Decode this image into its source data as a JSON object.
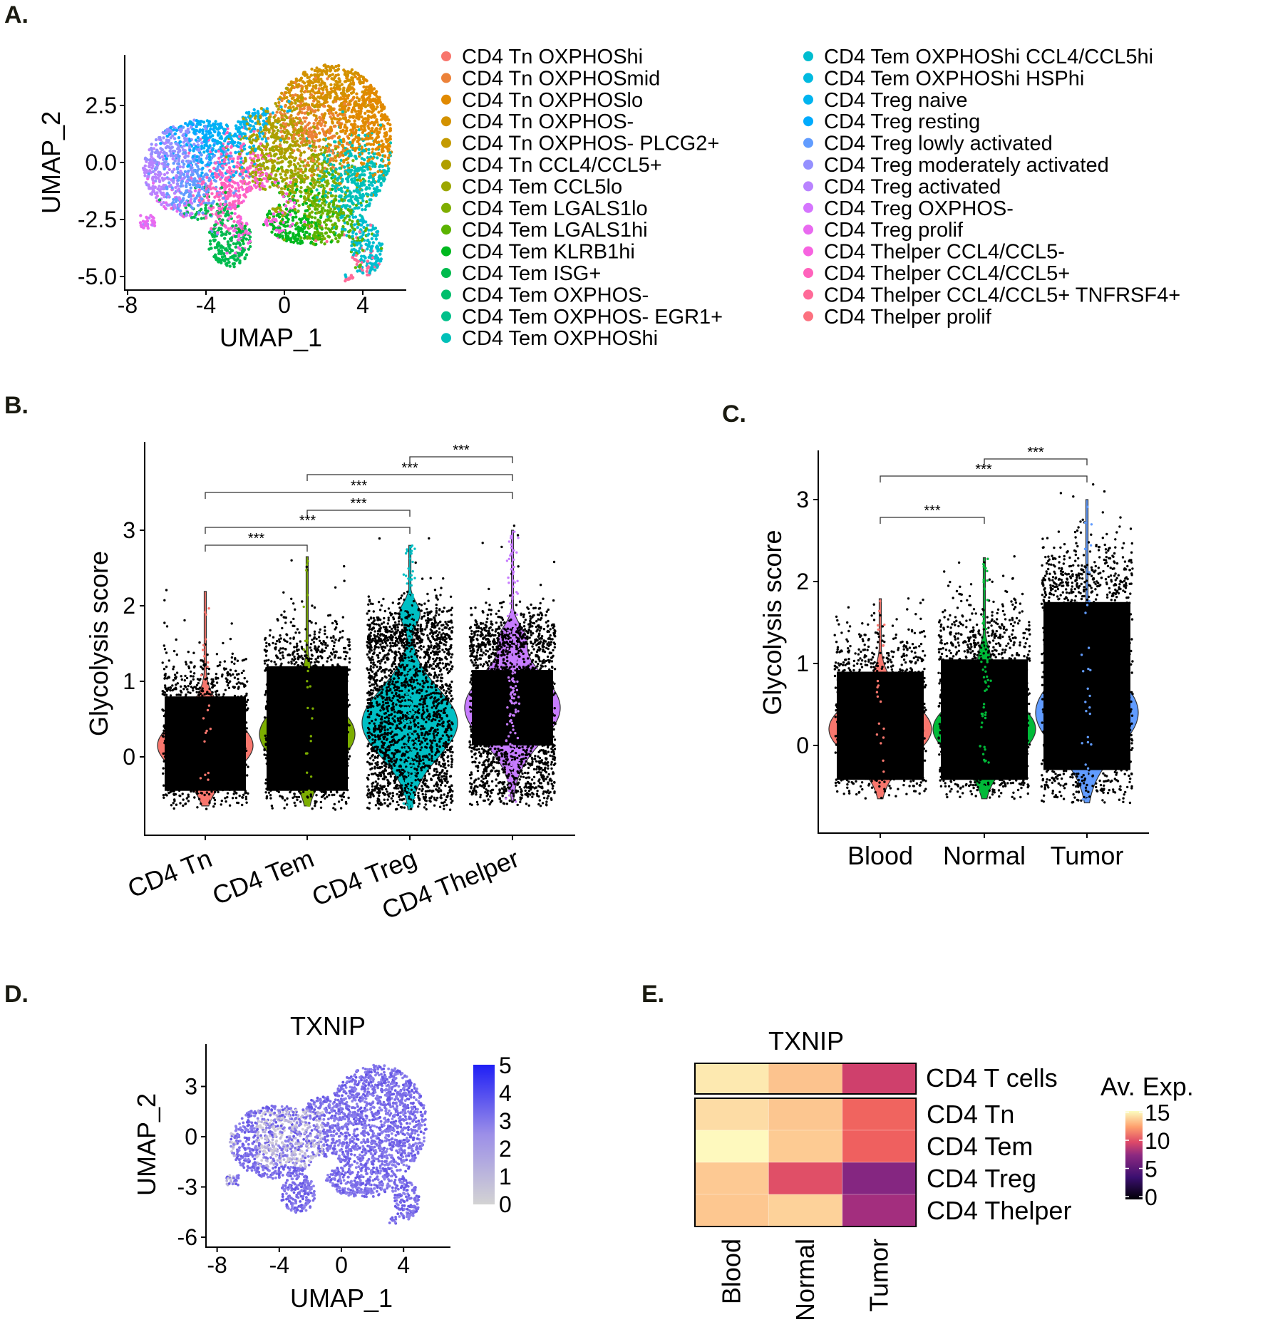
{
  "panels": {
    "A": "A.",
    "B": "B.",
    "C": "C.",
    "D": "D.",
    "E": "E."
  },
  "chart_data": [
    {
      "panel": "A",
      "type": "scatter",
      "xlabel": "UMAP_1",
      "ylabel": "UMAP_2",
      "xticks": [
        -8,
        -4,
        0,
        4
      ],
      "xtick_labels": [
        "-8",
        "-4",
        "0",
        "4"
      ],
      "yticks": [
        -5,
        -2.5,
        0,
        2.5
      ],
      "ytick_labels": [
        "-5.0",
        "-2.5",
        "0.0",
        "2.5"
      ],
      "legend": [
        {
          "label": "CD4 Tn OXPHOShi",
          "color": "#F8766D"
        },
        {
          "label": "CD4 Tn OXPHOSmid",
          "color": "#EC8239"
        },
        {
          "label": "CD4 Tn OXPHOSlo",
          "color": "#E18A00"
        },
        {
          "label": "CD4 Tn OXPHOS-",
          "color": "#D39200"
        },
        {
          "label": "CD4 Tn OXPHOS- PLCG2+",
          "color": "#C49A00"
        },
        {
          "label": "CD4 Tn CCL4/CCL5+",
          "color": "#B09F00"
        },
        {
          "label": "CD4 Tem CCL5lo",
          "color": "#9CA700"
        },
        {
          "label": "CD4 Tem LGALS1lo",
          "color": "#7FAE00"
        },
        {
          "label": "CD4 Tem LGALS1hi",
          "color": "#5BB300"
        },
        {
          "label": "CD4 Tem KLRB1hi",
          "color": "#00B81F"
        },
        {
          "label": "CD4 Tem ISG+",
          "color": "#00BB4E"
        },
        {
          "label": "CD4 Tem OXPHOS-",
          "color": "#00BE6C"
        },
        {
          "label": "CD4 Tem OXPHOS- EGR1+",
          "color": "#00C08B"
        },
        {
          "label": "CD4 Tem OXPHOShi",
          "color": "#00C0B8"
        },
        {
          "label": "CD4 Tem OXPHOShi CCL4/CCL5hi",
          "color": "#00BDD0"
        },
        {
          "label": "CD4 Tem OXPHOShi HSPhi",
          "color": "#00BAE0"
        },
        {
          "label": "CD4 Treg naive",
          "color": "#00B4EF"
        },
        {
          "label": "CD4 Treg resting",
          "color": "#00ABFD"
        },
        {
          "label": "CD4 Treg lowly activated",
          "color": "#619CFF"
        },
        {
          "label": "CD4 Treg moderately activated",
          "color": "#9590FF"
        },
        {
          "label": "CD4 Treg activated",
          "color": "#B983FF"
        },
        {
          "label": "CD4 Treg OXPHOS-",
          "color": "#D575FE"
        },
        {
          "label": "CD4 Treg prolif",
          "color": "#E96AF0"
        },
        {
          "label": "CD4 Thelper CCL4/CCL5-",
          "color": "#F763E0"
        },
        {
          "label": "CD4 Thelper CCL4/CCL5+",
          "color": "#FF62BC"
        },
        {
          "label": "CD4 Thelper CCL4/CCL5+ TNFRSF4+",
          "color": "#FF6A98"
        },
        {
          "label": "CD4 Thelper prolif",
          "color": "#FC717F"
        }
      ]
    },
    {
      "panel": "B",
      "type": "violin",
      "ylabel": "Glycolysis score",
      "yticks": [
        0,
        1,
        2,
        3
      ],
      "ylim": [
        -0.95,
        4.0
      ],
      "categories": [
        "CD4 Tn",
        "CD4 Tem",
        "CD4 Treg",
        "CD4 Thelper"
      ],
      "colors": [
        "#F8766D",
        "#7CAE00",
        "#00BFC4",
        "#C77CFF"
      ],
      "median": [
        0.15,
        0.3,
        0.45,
        0.65
      ],
      "min": [
        -0.65,
        -0.65,
        -0.7,
        -0.6
      ],
      "max": [
        2.2,
        2.65,
        2.8,
        3.0
      ],
      "comparisons": [
        {
          "a": 2,
          "b": 3,
          "label": "***"
        },
        {
          "a": 1,
          "b": 3,
          "label": "***"
        },
        {
          "a": 0,
          "b": 3,
          "label": "***"
        },
        {
          "a": 1,
          "b": 2,
          "label": "***"
        },
        {
          "a": 0,
          "b": 2,
          "label": "***"
        },
        {
          "a": 0,
          "b": 1,
          "label": "***"
        }
      ]
    },
    {
      "panel": "C",
      "type": "violin",
      "ylabel": "Glycolysis score",
      "yticks": [
        0,
        1,
        2,
        3
      ],
      "ylim": [
        -1.0,
        3.6
      ],
      "categories": [
        "Blood",
        "Normal",
        "Tumor"
      ],
      "colors": [
        "#F8766D",
        "#00BA38",
        "#619CFF"
      ],
      "median": [
        0.2,
        0.2,
        0.4
      ],
      "min": [
        -0.65,
        -0.65,
        -0.7
      ],
      "max": [
        1.8,
        2.3,
        3.0
      ],
      "comparisons": [
        {
          "a": 1,
          "b": 2,
          "label": "***"
        },
        {
          "a": 0,
          "b": 2,
          "label": "***"
        },
        {
          "a": 0,
          "b": 1,
          "label": "***"
        }
      ]
    },
    {
      "panel": "D",
      "type": "scatter",
      "title": "TXNIP",
      "xlabel": "UMAP_1",
      "ylabel": "UMAP_2",
      "xticks": [
        -8,
        -4,
        0,
        4
      ],
      "yticks": [
        -6,
        -3,
        0,
        3
      ],
      "colorbar": {
        "ticks": [
          0,
          1,
          2,
          3,
          4,
          5
        ],
        "low_color": "#D3D3D3",
        "high_color": "#0000FF"
      }
    },
    {
      "panel": "E",
      "type": "heatmap",
      "title": "TXNIP",
      "columns": [
        "Blood",
        "Normal",
        "Tumor"
      ],
      "summary_row": {
        "label": "CD4 T cells",
        "values": [
          15,
          13,
          8.5
        ],
        "colors": [
          "#FDE9B0",
          "#FCC38E",
          "#CF406C"
        ]
      },
      "rows": [
        {
          "label": "CD4 Tn",
          "values": [
            14.5,
            13,
            10
          ],
          "colors": [
            "#FDDCA5",
            "#FCC690",
            "#F0645F"
          ]
        },
        {
          "label": "CD4 Tem",
          "values": [
            15.5,
            13.2,
            10
          ],
          "colors": [
            "#FEF9BE",
            "#FDCB93",
            "#EF605F"
          ]
        },
        {
          "label": "CD4 Treg",
          "values": [
            13,
            9.5,
            6.5
          ],
          "colors": [
            "#FDC993",
            "#E04F67",
            "#852681"
          ]
        },
        {
          "label": "CD4 Thelper",
          "values": [
            13,
            13.5,
            7
          ],
          "colors": [
            "#FDC790",
            "#FDD29A",
            "#A32E7E"
          ]
        }
      ],
      "legend_title": "Av. Exp.",
      "legend_ticks": [
        0,
        5,
        10,
        15
      ]
    }
  ]
}
